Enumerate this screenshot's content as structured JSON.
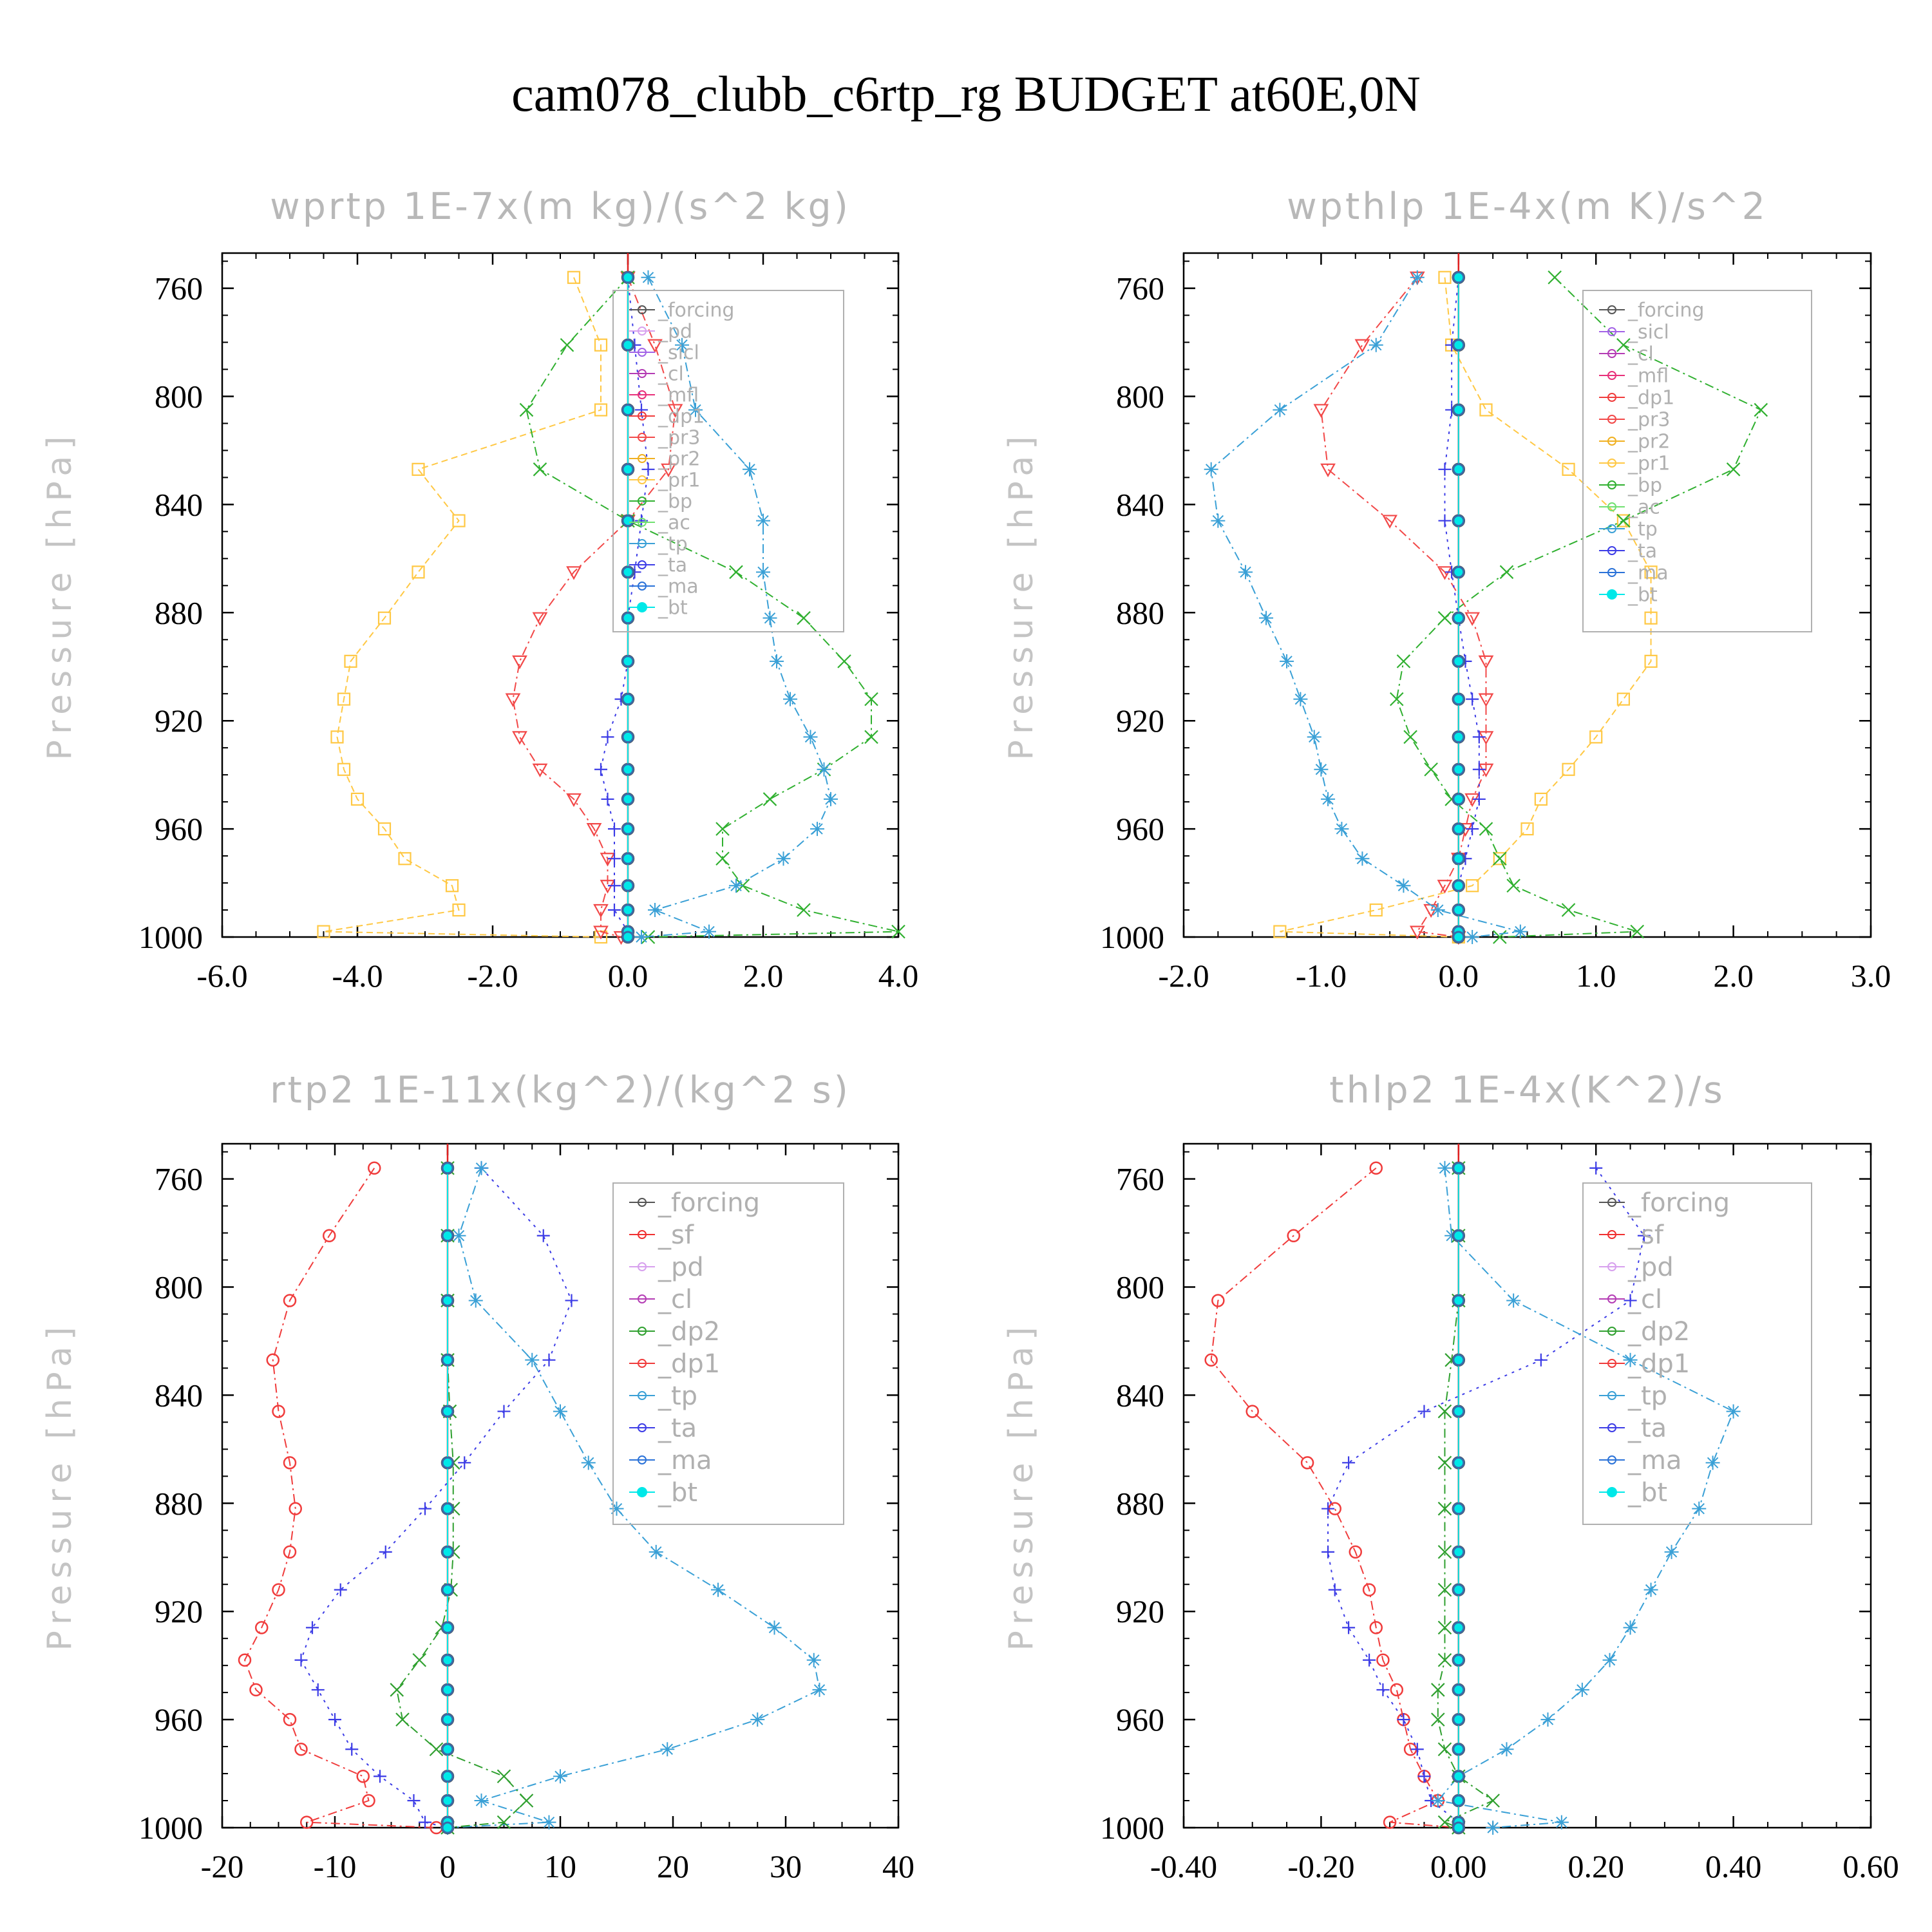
{
  "title": "cam078_clubb_c6rtp_rg  BUDGET at60E,0N",
  "series_colors": {
    "_forcing": "#555555",
    "_pd": "#d7a0ee",
    "_sicl": "#a262e6",
    "_cl": "#b43cb4",
    "_mfl": "#e8307a",
    "_dp1": "#f03c3c",
    "_pr3": "#f24848",
    "_pr2": "#f0b020",
    "_pr1": "#ffc844",
    "_bp": "#30b030",
    "_ac": "#70e070",
    "_tp": "#3aa0d6",
    "_ta": "#3c3ce6",
    "_ma": "#2a72d8",
    "_bt": "#00e8e8",
    "_sf": "#f03030",
    "_dp2": "#30a030"
  },
  "chart_data": [
    {
      "type": "line",
      "title": "wprtp  1E-7x(m kg)/(s^2 kg)",
      "ylabel": "Pressure [hPa]",
      "xlim": [
        -6,
        4
      ],
      "xticks": [
        "-6.0",
        "-4.0",
        "-2.0",
        "0.0",
        "2.0",
        "4.0"
      ],
      "ylim": [
        1000,
        747
      ],
      "yticks": [
        "760",
        "800",
        "840",
        "880",
        "920",
        "960",
        "1000"
      ],
      "legend": [
        "_forcing",
        "_pd",
        "_sicl",
        "_cl",
        "_mfl",
        "_dp1",
        "_pr3",
        "_pr2",
        "_pr1",
        "_bp",
        "_ac",
        "_tp",
        "_ta",
        "_ma",
        "_bt"
      ],
      "levels": [
        756,
        781,
        805,
        827,
        846,
        865,
        882,
        898,
        912,
        926,
        938,
        949,
        960,
        971,
        981,
        990,
        998,
        1000
      ],
      "series": [
        {
          "name": "_pr1",
          "marker": "square",
          "dash": "10,6",
          "values": [
            -0.8,
            -0.4,
            -0.4,
            -3.1,
            -2.5,
            -3.1,
            -3.6,
            -4.1,
            -4.2,
            -4.3,
            -4.2,
            -4.0,
            -3.6,
            -3.3,
            -2.6,
            -2.5,
            -4.5,
            -0.4
          ]
        },
        {
          "name": "_pr3",
          "marker": "tri-down",
          "dash": "14,6,3,6",
          "values": [
            0.0,
            0.4,
            0.7,
            0.6,
            0.0,
            -0.8,
            -1.3,
            -1.6,
            -1.7,
            -1.6,
            -1.3,
            -0.8,
            -0.5,
            -0.3,
            -0.3,
            -0.4,
            -0.4,
            -0.1
          ]
        },
        {
          "name": "_bp",
          "marker": "x",
          "dash": "14,6,3,6",
          "values": [
            0.0,
            -0.9,
            -1.5,
            -1.3,
            0.0,
            1.6,
            2.6,
            3.2,
            3.6,
            3.6,
            2.9,
            2.1,
            1.4,
            1.4,
            1.7,
            2.6,
            4.0,
            0.3
          ]
        },
        {
          "name": "_tp",
          "marker": "star",
          "dash": "14,6,3,6",
          "values": [
            0.3,
            0.8,
            1.0,
            1.8,
            2.0,
            2.0,
            2.1,
            2.2,
            2.4,
            2.7,
            2.9,
            3.0,
            2.8,
            2.3,
            1.6,
            0.4,
            1.2,
            0.2
          ]
        },
        {
          "name": "_ta",
          "marker": "plus",
          "dash": "4,8",
          "values": [
            0.0,
            0.1,
            0.2,
            0.3,
            0.2,
            0.1,
            0.0,
            0.0,
            -0.1,
            -0.3,
            -0.4,
            -0.3,
            -0.2,
            -0.2,
            -0.2,
            -0.2,
            0.0,
            0.0
          ]
        },
        {
          "name": "_forcing",
          "marker": "circle",
          "dash": "",
          "values": [
            0,
            0,
            0,
            0,
            0,
            0,
            0,
            0,
            0,
            0,
            0,
            0,
            0,
            0,
            0,
            0,
            0,
            0
          ]
        },
        {
          "name": "_bt",
          "marker": "dot",
          "dash": "",
          "values": [
            0,
            0,
            0,
            0,
            0,
            0,
            0,
            0,
            0,
            0,
            0,
            0,
            0,
            0,
            0,
            0,
            0,
            0
          ]
        }
      ]
    },
    {
      "type": "line",
      "title": "wpthlp  1E-4x(m K)/s^2",
      "ylabel": "Pressure [hPa]",
      "xlim": [
        -2,
        3
      ],
      "xticks": [
        "-2.0",
        "-1.0",
        "0.0",
        "1.0",
        "2.0",
        "3.0"
      ],
      "ylim": [
        1000,
        747
      ],
      "yticks": [
        "760",
        "800",
        "840",
        "880",
        "920",
        "960",
        "1000"
      ],
      "legend": [
        "_forcing",
        "_sicl",
        "_cl",
        "_mfl",
        "_dp1",
        "_pr3",
        "_pr2",
        "_pr1",
        "_bp",
        "_ac",
        "_tp",
        "_ta",
        "_ma",
        "_bt"
      ],
      "levels": [
        756,
        781,
        805,
        827,
        846,
        865,
        882,
        898,
        912,
        926,
        938,
        949,
        960,
        971,
        981,
        990,
        998,
        1000
      ],
      "series": [
        {
          "name": "_pr1",
          "marker": "square",
          "dash": "10,6",
          "values": [
            -0.1,
            -0.05,
            0.2,
            0.8,
            1.2,
            1.4,
            1.4,
            1.4,
            1.2,
            1.0,
            0.8,
            0.6,
            0.5,
            0.3,
            0.1,
            -0.6,
            -1.3,
            0.0
          ]
        },
        {
          "name": "_pr3",
          "marker": "tri-down",
          "dash": "14,6,3,6",
          "values": [
            -0.3,
            -0.7,
            -1.0,
            -0.95,
            -0.5,
            -0.1,
            0.1,
            0.2,
            0.2,
            0.2,
            0.2,
            0.1,
            0.05,
            0.0,
            -0.1,
            -0.2,
            -0.3,
            0.0
          ]
        },
        {
          "name": "_bp",
          "marker": "x",
          "dash": "14,6,3,6",
          "values": [
            0.7,
            1.2,
            2.2,
            2.0,
            1.2,
            0.35,
            -0.1,
            -0.4,
            -0.45,
            -0.35,
            -0.2,
            -0.05,
            0.2,
            0.3,
            0.4,
            0.8,
            1.3,
            0.3
          ]
        },
        {
          "name": "_tp",
          "marker": "star",
          "dash": "14,6,3,6",
          "values": [
            -0.3,
            -0.6,
            -1.3,
            -1.8,
            -1.75,
            -1.55,
            -1.4,
            -1.25,
            -1.15,
            -1.05,
            -1.0,
            -0.95,
            -0.85,
            -0.7,
            -0.4,
            -0.15,
            0.45,
            0.1
          ]
        },
        {
          "name": "_ta",
          "marker": "plus",
          "dash": "4,8",
          "values": [
            0.0,
            -0.05,
            -0.05,
            -0.1,
            -0.1,
            -0.05,
            0.0,
            0.05,
            0.1,
            0.15,
            0.15,
            0.15,
            0.1,
            0.05,
            0.0,
            0.0,
            0.0,
            0.0
          ]
        },
        {
          "name": "_forcing",
          "marker": "circle",
          "dash": "",
          "values": [
            0,
            0,
            0,
            0,
            0,
            0,
            0,
            0,
            0,
            0,
            0,
            0,
            0,
            0,
            0,
            0,
            0,
            0
          ]
        },
        {
          "name": "_bt",
          "marker": "dot",
          "dash": "",
          "values": [
            0,
            0,
            0,
            0,
            0,
            0,
            0,
            0,
            0,
            0,
            0,
            0,
            0,
            0,
            0,
            0,
            0,
            0
          ]
        }
      ]
    },
    {
      "type": "line",
      "title": "rtp2  1E-11x(kg^2)/(kg^2 s)",
      "ylabel": "Pressure [hPa]",
      "xlim": [
        -20,
        40
      ],
      "xticks": [
        "-20",
        "-10",
        "0",
        "10",
        "20",
        "30",
        "40"
      ],
      "ylim": [
        1000,
        747
      ],
      "yticks": [
        "760",
        "800",
        "840",
        "880",
        "920",
        "960",
        "1000"
      ],
      "legend": [
        "_forcing",
        "_sf",
        "_pd",
        "_cl",
        "_dp2",
        "_dp1",
        "_tp",
        "_ta",
        "_ma",
        "_bt"
      ],
      "levels": [
        756,
        781,
        805,
        827,
        846,
        865,
        882,
        898,
        912,
        926,
        938,
        949,
        960,
        971,
        981,
        990,
        998,
        1000
      ],
      "series": [
        {
          "name": "_dp1",
          "marker": "circle",
          "dash": "14,6,3,6",
          "values": [
            -6.5,
            -10.5,
            -14,
            -15.5,
            -15,
            -14,
            -13.5,
            -14,
            -15,
            -16.5,
            -18,
            -17,
            -14,
            -13,
            -7.5,
            -7,
            -12.5,
            -1
          ]
        },
        {
          "name": "_ta",
          "marker": "plus",
          "dash": "4,8",
          "values": [
            3,
            8.5,
            11,
            9,
            5,
            1.5,
            -2,
            -5.5,
            -9.5,
            -12,
            -13,
            -11.5,
            -10,
            -8.5,
            -6,
            -3,
            -2,
            0
          ]
        },
        {
          "name": "_tp",
          "marker": "star",
          "dash": "14,6,3,6",
          "values": [
            3,
            1,
            2.5,
            7.5,
            10,
            12.5,
            15,
            18.5,
            24,
            29,
            32.5,
            33,
            27.5,
            19.5,
            10,
            3,
            9,
            0
          ]
        },
        {
          "name": "_dp2",
          "marker": "x",
          "dash": "14,6,3,6",
          "values": [
            0,
            0,
            0,
            0,
            0.2,
            0.5,
            0.5,
            0.5,
            0.3,
            -0.5,
            -2.5,
            -4.5,
            -4,
            -1,
            5,
            7,
            5,
            0
          ]
        },
        {
          "name": "_forcing",
          "marker": "circle",
          "dash": "",
          "values": [
            0,
            0,
            0,
            0,
            0,
            0,
            0,
            0,
            0,
            0,
            0,
            0,
            0,
            0,
            0,
            0,
            0,
            0
          ]
        },
        {
          "name": "_bt",
          "marker": "dot",
          "dash": "",
          "values": [
            0,
            0,
            0,
            0,
            0,
            0,
            0,
            0,
            0,
            0,
            0,
            0,
            0,
            0,
            0,
            0,
            0,
            0
          ]
        }
      ]
    },
    {
      "type": "line",
      "title": "thlp2  1E-4x(K^2)/s",
      "ylabel": "Pressure [hPa]",
      "xlim": [
        -0.4,
        0.6
      ],
      "xticks": [
        "-0.40",
        "-0.20",
        "0.00",
        "0.20",
        "0.40",
        "0.60"
      ],
      "ylim": [
        1000,
        747
      ],
      "yticks": [
        "760",
        "800",
        "840",
        "880",
        "920",
        "960",
        "1000"
      ],
      "legend": [
        "_forcing",
        "_sf",
        "_pd",
        "_cl",
        "_dp2",
        "_dp1",
        "_tp",
        "_ta",
        "_ma",
        "_bt"
      ],
      "levels": [
        756,
        781,
        805,
        827,
        846,
        865,
        882,
        898,
        912,
        926,
        938,
        949,
        960,
        971,
        981,
        990,
        998,
        1000
      ],
      "series": [
        {
          "name": "_dp1",
          "marker": "circle",
          "dash": "14,6,3,6",
          "values": [
            -0.12,
            -0.24,
            -0.35,
            -0.36,
            -0.3,
            -0.22,
            -0.18,
            -0.15,
            -0.13,
            -0.12,
            -0.11,
            -0.09,
            -0.08,
            -0.07,
            -0.05,
            -0.03,
            -0.1,
            0.0
          ]
        },
        {
          "name": "_ta",
          "marker": "plus",
          "dash": "4,8",
          "values": [
            0.2,
            0.27,
            0.25,
            0.12,
            -0.05,
            -0.16,
            -0.19,
            -0.19,
            -0.18,
            -0.16,
            -0.13,
            -0.11,
            -0.08,
            -0.06,
            -0.05,
            -0.04,
            0.0,
            0.0
          ]
        },
        {
          "name": "_tp",
          "marker": "star",
          "dash": "14,6,3,6",
          "values": [
            -0.02,
            -0.01,
            0.08,
            0.25,
            0.4,
            0.37,
            0.35,
            0.31,
            0.28,
            0.25,
            0.22,
            0.18,
            0.13,
            0.07,
            0.0,
            -0.03,
            0.15,
            0.05
          ]
        },
        {
          "name": "_dp2",
          "marker": "x",
          "dash": "14,6,3,6",
          "values": [
            0,
            0,
            0,
            -0.01,
            -0.02,
            -0.02,
            -0.02,
            -0.02,
            -0.02,
            -0.02,
            -0.02,
            -0.03,
            -0.03,
            -0.02,
            0.0,
            0.05,
            -0.02,
            0.0
          ]
        },
        {
          "name": "_forcing",
          "marker": "circle",
          "dash": "",
          "values": [
            0,
            0,
            0,
            0,
            0,
            0,
            0,
            0,
            0,
            0,
            0,
            0,
            0,
            0,
            0,
            0,
            0,
            0
          ]
        },
        {
          "name": "_bt",
          "marker": "dot",
          "dash": "",
          "values": [
            0,
            0,
            0,
            0,
            0,
            0,
            0,
            0,
            0,
            0,
            0,
            0,
            0,
            0,
            0,
            0,
            0,
            0
          ]
        }
      ]
    }
  ]
}
